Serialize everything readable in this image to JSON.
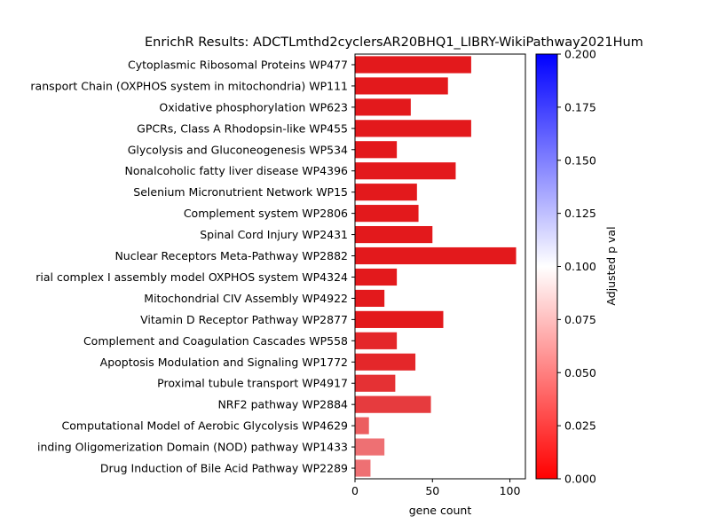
{
  "chart_data": {
    "type": "bar",
    "orientation": "horizontal",
    "title": "EnrichR Results: ADCTLmthd2cyclersAR20BHQ1_LIBRY-WikiPathway2021Hum",
    "xlabel": "gene count",
    "ylabel": "",
    "xlim": [
      0,
      110
    ],
    "xticks": [
      0,
      50,
      100
    ],
    "grid": false,
    "categories": [
      "Cytoplasmic Ribosomal Proteins WP477",
      "ransport Chain (OXPHOS system in mitochondria) WP111",
      "Oxidative phosphorylation WP623",
      "GPCRs, Class A Rhodopsin-like WP455",
      "Glycolysis and Gluconeogenesis WP534",
      "Nonalcoholic fatty liver disease WP4396",
      "Selenium Micronutrient Network WP15",
      "Complement system WP2806",
      "Spinal Cord Injury WP2431",
      "Nuclear Receptors Meta-Pathway WP2882",
      "rial complex I assembly model OXPHOS system WP4324",
      "Mitochondrial CIV Assembly WP4922",
      "Vitamin D Receptor Pathway WP2877",
      "Complement and Coagulation Cascades WP558",
      "Apoptosis Modulation and Signaling WP1772",
      "Proximal tubule transport WP4917",
      "NRF2 pathway WP2884",
      "Computational Model of Aerobic Glycolysis WP4629",
      "inding Oligomerization Domain (NOD) pathway WP1433",
      "Drug Induction of Bile Acid Pathway WP2289"
    ],
    "values": [
      75,
      60,
      36,
      75,
      27,
      65,
      40,
      41,
      50,
      104,
      27,
      19,
      57,
      27,
      39,
      26,
      49,
      9,
      19,
      10
    ],
    "colors": [
      "#e3191c",
      "#e3191c",
      "#e3191c",
      "#e3191c",
      "#e3191c",
      "#e3191c",
      "#e3191c",
      "#e3191c",
      "#e3191c",
      "#e3191c",
      "#e3191c",
      "#e3191c",
      "#e3191c",
      "#e4272a",
      "#e4272a",
      "#e53134",
      "#e63b3e",
      "#ec5e60",
      "#ee7073",
      "#ee7073"
    ],
    "colorbar": {
      "label": "Adjusted p val",
      "vmin": 0.0,
      "vmax": 0.2,
      "ticks": [
        "0.000",
        "0.025",
        "0.050",
        "0.075",
        "0.100",
        "0.125",
        "0.150",
        "0.175",
        "0.200"
      ],
      "colors": [
        "#ff0000",
        "#ffffff",
        "#0000ff"
      ]
    }
  }
}
